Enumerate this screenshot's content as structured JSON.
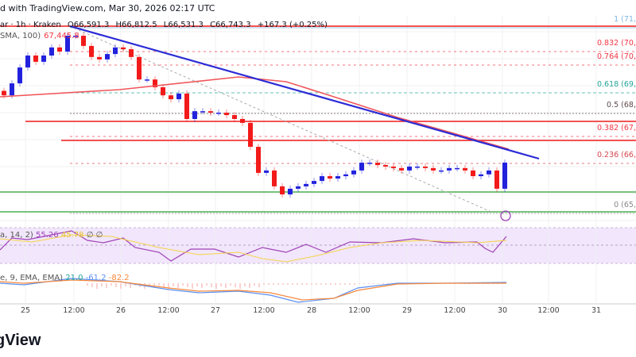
{
  "header": {
    "published": "d with TradingView.com, Mar 30, 2026 02:17 UTC"
  },
  "legend": {
    "symbol": "ar · 1h · Kraken",
    "open": "O66,591.3",
    "high": "H66,812.5",
    "low": "L66,531.3",
    "close": "C66,743.3",
    "change": "+167.3 (+0.25%)",
    "sma_label": "SMA, 100)",
    "sma_value": "67,445.8",
    "rsi_label": "a, 14, 2)",
    "rsi_value": "55.26",
    "rsi_ma": "45.78",
    "rsi_extra": "∅ ∅",
    "macd_label": "e, 9, EMA, EMA)",
    "macd_hist": "21.0",
    "macd_line": "-61.2",
    "macd_signal": "-82.2"
  },
  "fib_levels": [
    {
      "label": "1 (71,",
      "color": "#7fb6e0"
    },
    {
      "label": "0.832 (70,",
      "color": "#f23645"
    },
    {
      "label": "0.764 (70,",
      "color": "#f23645"
    },
    {
      "label": "0.618 (69,",
      "color": "#26a69a"
    },
    {
      "label": "0.5 (68,",
      "color": "#5d4a4a"
    },
    {
      "label": "0.382 (67,",
      "color": "#f23645"
    },
    {
      "label": "0.236 (66,",
      "color": "#d4474f"
    },
    {
      "label": "0 (65,",
      "color": "#888888"
    }
  ],
  "time_axis": [
    "25",
    "12:00",
    "26",
    "12:00",
    "27",
    "12:00",
    "28",
    "12:00",
    "29",
    "12:00",
    "30",
    "12:00",
    "31"
  ],
  "logo": "gView",
  "colors": {
    "up": "#2222dd",
    "down": "#f21a1a",
    "trendline": "#2b2bd6",
    "sma": "#f0565a",
    "support": "#4caf50",
    "rsi": "#a042b8",
    "rsi_ma": "#f5d34a",
    "macd": "#5b8ff0",
    "signal": "#f7893b"
  },
  "chart_data": {
    "type": "candlestick",
    "interval": "1h",
    "closes": [
      68990,
      69390,
      69920,
      70320,
      70110,
      70320,
      70590,
      70450,
      70980,
      70980,
      70640,
      70270,
      70190,
      70370,
      70590,
      70530,
      70270,
      69520,
      69520,
      69260,
      68990,
      68860,
      69050,
      68200,
      68460,
      68460,
      68410,
      68410,
      68330,
      68200,
      68070,
      67270,
      66400,
      66480,
      65950,
      65680,
      65870,
      65950,
      66030,
      66130,
      66290,
      66210,
      66290,
      66350,
      66480,
      66740,
      66740,
      66660,
      66610,
      66560,
      66480,
      66610,
      66610,
      66560,
      66480,
      66480,
      66560,
      66560,
      66480,
      66290,
      66350,
      66480,
      65870,
      66743.3
    ],
    "sma100": 67445.8,
    "ylim": [
      64900,
      71600
    ]
  }
}
